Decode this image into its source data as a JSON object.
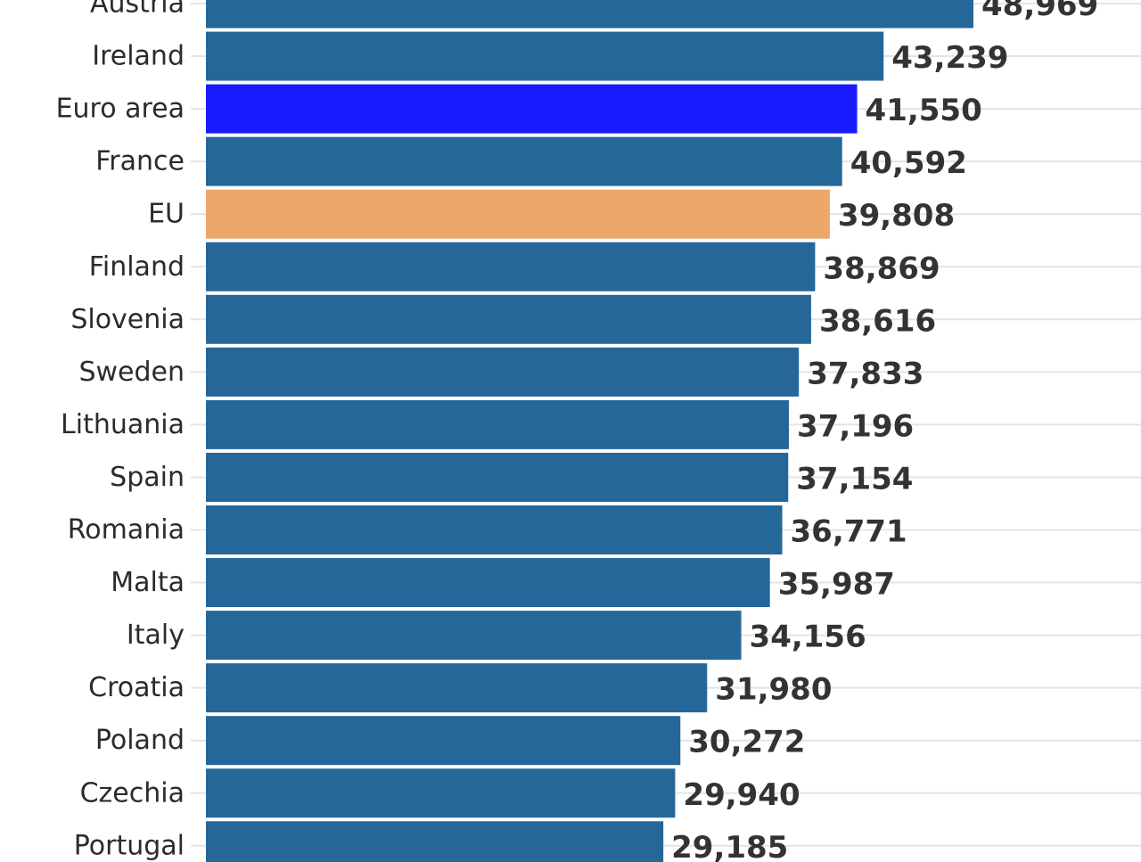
{
  "chart_data": {
    "type": "bar",
    "orientation": "horizontal",
    "title": "",
    "xlabel": "",
    "ylabel": "",
    "categories": [
      "Austria",
      "Ireland",
      "Euro area",
      "France",
      "EU",
      "Finland",
      "Slovenia",
      "Sweden",
      "Lithuania",
      "Spain",
      "Romania",
      "Malta",
      "Italy",
      "Croatia",
      "Poland",
      "Czechia",
      "Portugal"
    ],
    "values": [
      48969,
      43239,
      41550,
      40592,
      39808,
      38869,
      38616,
      37833,
      37196,
      37154,
      36771,
      35987,
      34156,
      31980,
      30272,
      29940,
      29185
    ],
    "value_labels": [
      "48,969",
      "43,239",
      "41,550",
      "40,592",
      "39,808",
      "38,869",
      "38,616",
      "37,833",
      "37,196",
      "37,154",
      "36,771",
      "35,987",
      "34,156",
      "31,980",
      "30,272",
      "29,940",
      "29,185"
    ],
    "bar_colors": [
      "#26679a",
      "#26679a",
      "#1a1aff",
      "#26679a",
      "#eba86a",
      "#26679a",
      "#26679a",
      "#26679a",
      "#26679a",
      "#26679a",
      "#26679a",
      "#26679a",
      "#26679a",
      "#26679a",
      "#26679a",
      "#26679a",
      "#26679a"
    ],
    "default_color": "#26679a",
    "highlight_colors": {
      "Euro area": "#1a1aff",
      "EU": "#eba86a"
    },
    "xlim": [
      0,
      63000
    ],
    "grid": true,
    "legend": "none"
  }
}
